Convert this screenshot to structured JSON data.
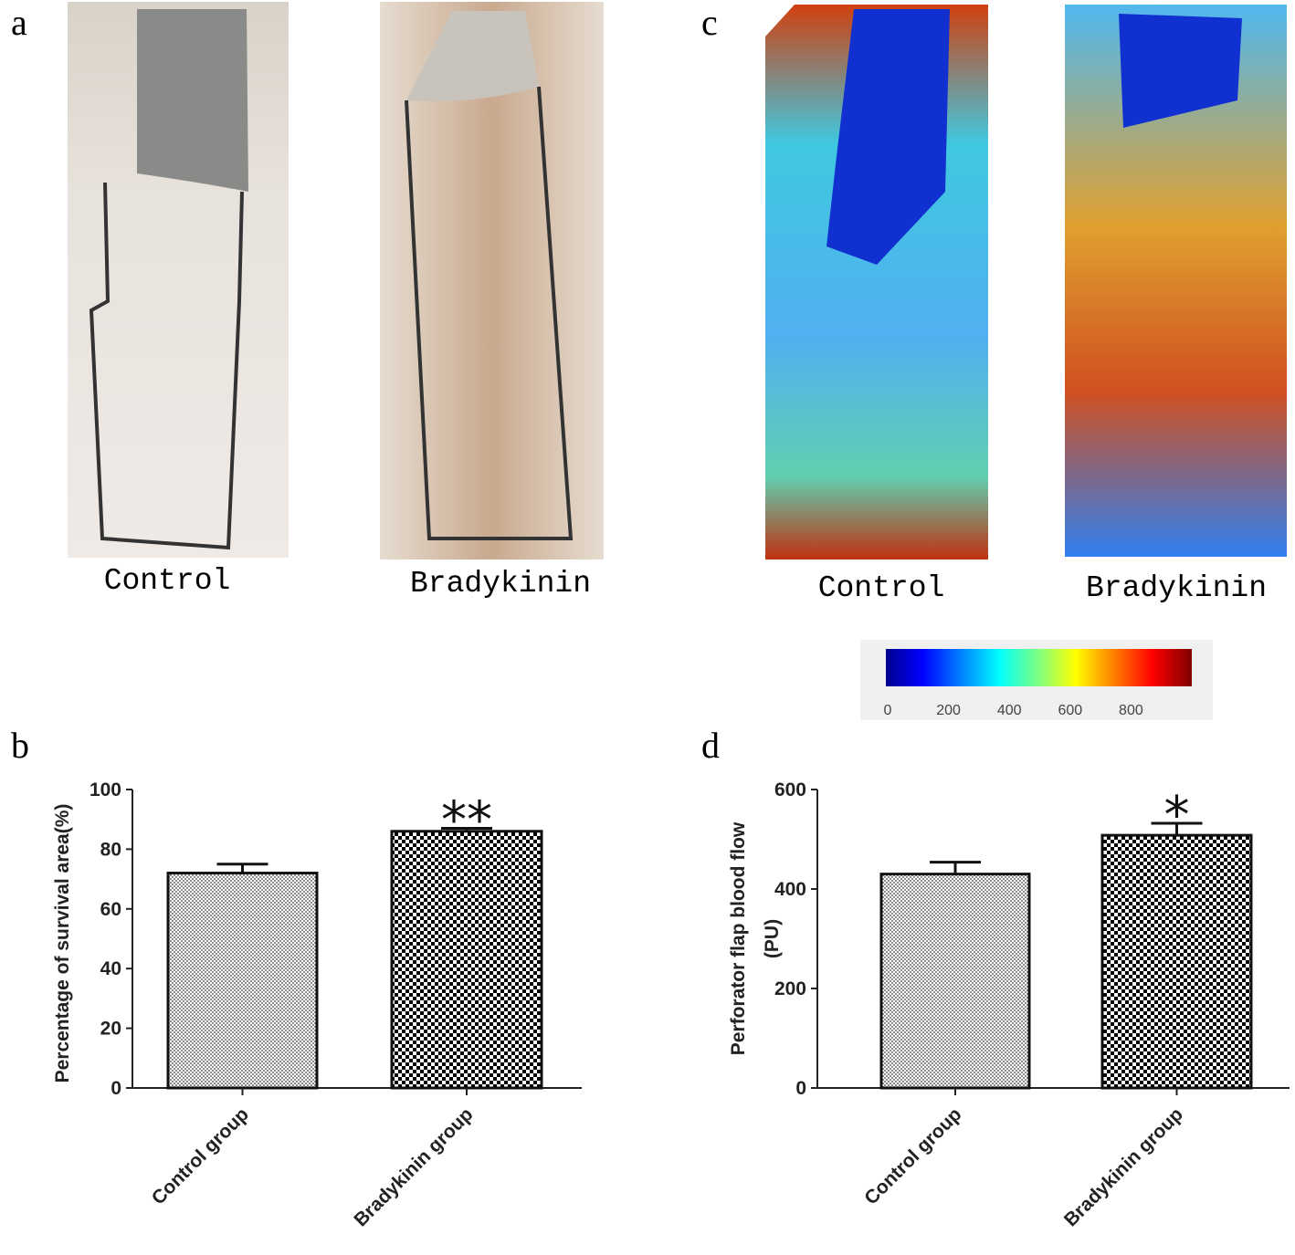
{
  "photos": [
    {
      "label": "a",
      "captions": [
        "Control",
        "Bradykinin"
      ]
    },
    {
      "label": "c",
      "captions": [
        "Control",
        "Bradykinin"
      ],
      "colorbar": {
        "lim": [
          0,
          1000
        ],
        "ticks": [
          0,
          200,
          400,
          600,
          800
        ]
      }
    }
  ],
  "chart_data": [
    {
      "type": "bar",
      "label": "b",
      "ylabel": "Percentage of survival area(%)",
      "categories": [
        "Control group",
        "Bradykinin group"
      ],
      "values": [
        72,
        86
      ],
      "errors": [
        3,
        1
      ],
      "colors": [
        "#8c8c8c",
        "#000000"
      ],
      "annotations": [
        {
          "category": 1,
          "text": "**"
        }
      ],
      "ylim": [
        0,
        100
      ],
      "yticks": [
        0,
        20,
        40,
        60,
        80,
        100
      ]
    },
    {
      "type": "bar",
      "label": "d",
      "ylabel": [
        "Perforator flap blood flow",
        "(PU)"
      ],
      "categories": [
        "Control group",
        "Bradykinin group"
      ],
      "values": [
        430,
        508
      ],
      "errors": [
        24,
        24
      ],
      "colors": [
        "#8c8c8c",
        "#000000"
      ],
      "annotations": [
        {
          "category": 1,
          "text": "*"
        }
      ],
      "ylim": [
        0,
        600
      ],
      "yticks": [
        0,
        200,
        400,
        600
      ]
    }
  ]
}
